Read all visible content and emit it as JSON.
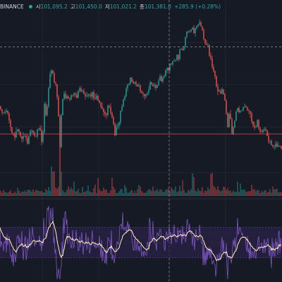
{
  "header": {
    "exchange": "BINANCE",
    "open_label": "시",
    "open_value": "101,095.2",
    "high_label": "고",
    "high_value": "101,450.0",
    "low_label": "저",
    "low_value": "101,021.2",
    "close_label": "종",
    "close_value": "101,381.0",
    "change": "+285.9 (+0.28%)"
  },
  "colors": {
    "background": "#161a25",
    "up": "#26a69a",
    "down": "#ef5350",
    "oscillator": "#7e57c2",
    "signal": "#fff3b0",
    "band_fill": "#2a2246"
  },
  "chart_data": {
    "type": "line",
    "title": "",
    "price_path": [
      [
        0,
        101240
      ],
      [
        5,
        101180
      ],
      [
        10,
        101200
      ],
      [
        15,
        101120
      ],
      [
        20,
        101060
      ],
      [
        25,
        101090
      ],
      [
        30,
        101040
      ],
      [
        35,
        101060
      ],
      [
        40,
        101020
      ],
      [
        45,
        101080
      ],
      [
        50,
        101060
      ],
      [
        55,
        101100
      ],
      [
        60,
        101040
      ],
      [
        63,
        101220
      ],
      [
        66,
        101200
      ],
      [
        70,
        101390
      ],
      [
        74,
        101460
      ],
      [
        77,
        101390
      ],
      [
        80,
        101380
      ],
      [
        83,
        101160
      ],
      [
        85,
        101000
      ],
      [
        88,
        101250
      ],
      [
        91,
        101300
      ],
      [
        95,
        101280
      ],
      [
        100,
        101320
      ],
      [
        105,
        101300
      ],
      [
        110,
        101330
      ],
      [
        115,
        101310
      ],
      [
        120,
        101330
      ],
      [
        125,
        101300
      ],
      [
        130,
        101320
      ],
      [
        135,
        101280
      ],
      [
        140,
        101260
      ],
      [
        145,
        101230
      ],
      [
        150,
        101180
      ],
      [
        155,
        101240
      ],
      [
        160,
        101160
      ],
      [
        163,
        101060
      ],
      [
        166,
        101110
      ],
      [
        170,
        101180
      ],
      [
        175,
        101260
      ],
      [
        180,
        101350
      ],
      [
        185,
        101390
      ],
      [
        190,
        101380
      ],
      [
        195,
        101360
      ],
      [
        200,
        101340
      ],
      [
        205,
        101310
      ],
      [
        210,
        101330
      ],
      [
        215,
        101370
      ],
      [
        220,
        101350
      ],
      [
        225,
        101380
      ],
      [
        230,
        101420
      ],
      [
        235,
        101450
      ],
      [
        240,
        101480
      ],
      [
        245,
        101510
      ],
      [
        250,
        101520
      ],
      [
        255,
        101560
      ],
      [
        260,
        101600
      ],
      [
        265,
        101660
      ],
      [
        270,
        101720
      ],
      [
        275,
        101700
      ],
      [
        280,
        101740
      ],
      [
        285,
        101720
      ],
      [
        290,
        101640
      ],
      [
        295,
        101600
      ],
      [
        300,
        101500
      ],
      [
        305,
        101420
      ],
      [
        310,
        101300
      ],
      [
        315,
        101340
      ],
      [
        320,
        101250
      ],
      [
        323,
        101120
      ],
      [
        326,
        101200
      ],
      [
        330,
        101060
      ],
      [
        333,
        101180
      ],
      [
        336,
        101230
      ],
      [
        340,
        101200
      ],
      [
        345,
        101240
      ],
      [
        350,
        101230
      ],
      [
        355,
        101180
      ],
      [
        360,
        101120
      ],
      [
        365,
        101130
      ],
      [
        370,
        101080
      ],
      [
        375,
        101100
      ],
      [
        380,
        101040
      ],
      [
        385,
        101030
      ],
      [
        390,
        101000
      ],
      [
        395,
        100990
      ],
      [
        400,
        100980
      ]
    ],
    "reference_lines": {
      "upper_price": 101600,
      "current_price": 101070,
      "crosshair_price": 101381
    },
    "oscillator_band": [
      30,
      70
    ],
    "ylim_price": [
      100950,
      101800
    ],
    "xlim": [
      0,
      400
    ],
    "grid": true
  }
}
